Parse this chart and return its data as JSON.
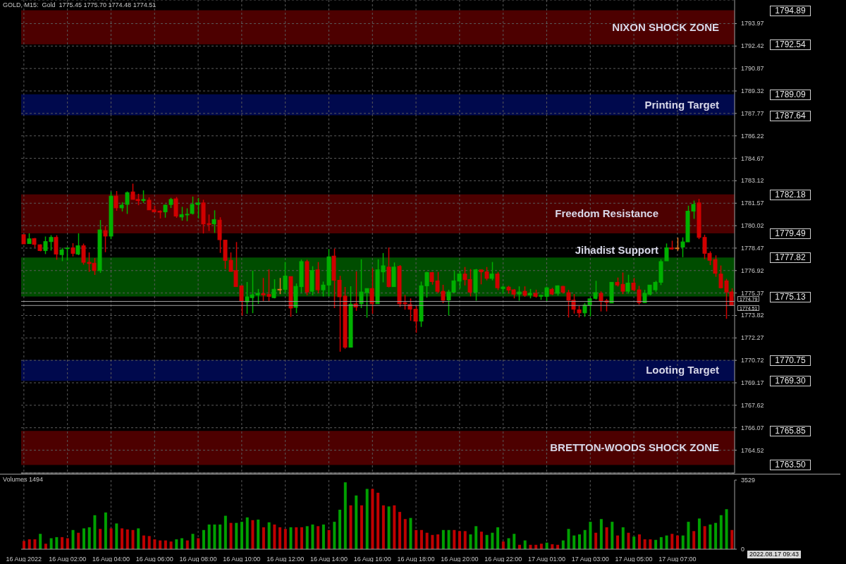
{
  "chart_data": [
    {
      "type": "candlestick",
      "title": "GOLD, M15:  Gold  1775.45 1775.70 1774.48 1774.51",
      "tick_labels": "y",
      "grid": true,
      "categories": [
        null,
        null,
        null,
        null,
        null,
        null,
        null,
        null,
        null,
        null,
        null,
        null,
        null,
        null,
        null,
        null,
        null,
        null,
        null,
        null,
        null,
        null,
        null,
        null,
        null,
        null,
        null,
        null,
        null,
        null,
        null,
        null,
        null,
        null,
        null,
        null,
        null,
        null,
        null,
        null,
        null,
        null,
        null,
        null,
        null,
        null,
        null,
        null,
        null,
        null,
        null,
        null,
        null,
        null,
        null,
        null,
        null,
        null,
        null,
        null,
        null,
        null,
        null,
        null,
        null,
        null,
        null,
        null,
        null,
        null,
        null,
        null,
        null,
        null,
        null,
        null,
        null,
        null,
        null,
        null,
        null,
        null,
        null,
        null,
        null,
        null,
        null,
        null,
        null,
        null,
        null,
        null,
        null,
        null,
        null,
        null,
        null,
        null,
        null,
        null,
        null,
        null,
        null,
        null,
        null,
        null,
        null,
        null,
        null,
        null,
        null,
        null,
        null,
        null,
        null,
        null,
        null,
        null,
        null,
        null,
        null,
        null,
        null,
        null,
        null,
        null,
        null,
        null,
        null,
        null,
        null
      ],
      "ohlc": [
        [
          1779.4,
          1779.4,
          1778.76,
          1778.76
        ],
        [
          1778.78,
          1779.49,
          1778.78,
          1779.11
        ],
        [
          1779.13,
          1779.17,
          1778.51,
          1778.73
        ],
        [
          1778.7,
          1778.73,
          1778.25,
          1778.3
        ],
        [
          1778.3,
          1779.27,
          1778.06,
          1778.92
        ],
        [
          1778.92,
          1779.36,
          1778.3,
          1779.21
        ],
        [
          1779.21,
          1779.36,
          1777.67,
          1778.06
        ],
        [
          1778.02,
          1778.49,
          1777.57,
          1778.35
        ],
        [
          1778.45,
          1778.51,
          1777.62,
          1778.48
        ],
        [
          1778.49,
          1778.81,
          1777.9,
          1778.11
        ],
        [
          1778.06,
          1779.49,
          1777.98,
          1778.63
        ],
        [
          1778.63,
          1778.78,
          1777.33,
          1777.49
        ],
        [
          1777.49,
          1778.17,
          1776.83,
          1777.4
        ],
        [
          1777.43,
          1777.79,
          1776.62,
          1776.92
        ],
        [
          1776.92,
          1780.41,
          1776.76,
          1779.73
        ],
        [
          1779.68,
          1780.0,
          1778.19,
          1779.3
        ],
        [
          1779.3,
          1782.35,
          1779.09,
          1782.06
        ],
        [
          1782.06,
          1782.41,
          1781.05,
          1781.25
        ],
        [
          1781.25,
          1781.63,
          1781.0,
          1781.44
        ],
        [
          1781.49,
          1782.38,
          1780.83,
          1782.3
        ],
        [
          1782.35,
          1782.92,
          1781.83,
          1781.83
        ],
        [
          1781.83,
          1782.22,
          1781.43,
          1781.75
        ],
        [
          1781.75,
          1782.46,
          1781.59,
          1781.83
        ],
        [
          1781.78,
          1781.97,
          1781.11,
          1781.11
        ],
        [
          1781.11,
          1781.4,
          1780.97,
          1780.97
        ],
        [
          1781.02,
          1781.08,
          1780.52,
          1780.95
        ],
        [
          1780.97,
          1781.49,
          1780.57,
          1781.44
        ],
        [
          1781.48,
          1781.94,
          1781.24,
          1781.83
        ],
        [
          1781.87,
          1782.0,
          1780.56,
          1780.68
        ],
        [
          1780.62,
          1781.32,
          1780.36,
          1780.78
        ],
        [
          1780.76,
          1781.22,
          1780.33,
          1780.81
        ],
        [
          1780.86,
          1782.03,
          1780.79,
          1781.49
        ],
        [
          1781.48,
          1781.94,
          1780.52,
          1781.59
        ],
        [
          1781.59,
          1781.81,
          1779.48,
          1780.14
        ],
        [
          1780.16,
          1780.79,
          1779.65,
          1780.1
        ],
        [
          1780.14,
          1781.08,
          1779.52,
          1780.44
        ],
        [
          1780.4,
          1780.6,
          1778.14,
          1779.05
        ],
        [
          1779.02,
          1779.02,
          1777.03,
          1777.62
        ],
        [
          1777.63,
          1778.17,
          1776.86,
          1776.86
        ],
        [
          1776.92,
          1778.89,
          1775.81,
          1775.81
        ],
        [
          1775.87,
          1775.87,
          1773.81,
          1774.81
        ],
        [
          1774.76,
          1776.13,
          1773.94,
          1775.11
        ],
        [
          1775.05,
          1776.92,
          1773.98,
          1775.25
        ],
        [
          1775.24,
          1775.65,
          1774.62,
          1775.35
        ],
        [
          1775.33,
          1776.41,
          1774.79,
          1775.24
        ],
        [
          1775.27,
          1777.0,
          1774.79,
          1775.14
        ],
        [
          1775.05,
          1776.32,
          1775.0,
          1775.63
        ],
        [
          1775.63,
          1776.41,
          1775.29,
          1775.63
        ],
        [
          1775.62,
          1777.51,
          1775.36,
          1776.54
        ],
        [
          1776.51,
          1776.51,
          1773.73,
          1774.33
        ],
        [
          1774.38,
          1776.03,
          1773.98,
          1775.83
        ],
        [
          1775.81,
          1777.68,
          1775.41,
          1777.54
        ],
        [
          1777.54,
          1777.67,
          1775.21,
          1775.44
        ],
        [
          1775.49,
          1777.22,
          1775.21,
          1776.92
        ],
        [
          1776.97,
          1777.51,
          1775.36,
          1775.59
        ],
        [
          1775.59,
          1776.16,
          1775.13,
          1775.92
        ],
        [
          1775.92,
          1778.41,
          1775.13,
          1777.87
        ],
        [
          1777.92,
          1778.44,
          1774.33,
          1776.25
        ],
        [
          1776.25,
          1776.56,
          1771.32,
          1775.11
        ],
        [
          1775.16,
          1775.79,
          1771.52,
          1771.63
        ],
        [
          1771.63,
          1775.84,
          1771.63,
          1774.59
        ],
        [
          1774.62,
          1776.86,
          1774.14,
          1774.4
        ],
        [
          1774.63,
          1777.7,
          1774.33,
          1775.44
        ],
        [
          1775.4,
          1775.68,
          1773.67,
          1775.68
        ],
        [
          1775.68,
          1777.08,
          1773.94,
          1774.63
        ],
        [
          1774.63,
          1777.7,
          1774.63,
          1776.97
        ],
        [
          1776.83,
          1778.13,
          1776.11,
          1777.25
        ],
        [
          1777.16,
          1778.51,
          1775.76,
          1775.81
        ],
        [
          1775.81,
          1777.48,
          1775.81,
          1777.16
        ],
        [
          1777.21,
          1777.3,
          1774.41,
          1774.63
        ],
        [
          1774.7,
          1775.24,
          1774.22,
          1774.63
        ],
        [
          1774.57,
          1775.0,
          1773.46,
          1774.25
        ],
        [
          1774.25,
          1774.48,
          1772.63,
          1773.43
        ],
        [
          1773.43,
          1776.16,
          1773.03,
          1775.87
        ],
        [
          1775.87,
          1776.84,
          1775.05,
          1776.78
        ],
        [
          1776.78,
          1776.83,
          1775.95,
          1776.16
        ],
        [
          1776.21,
          1776.83,
          1775.36,
          1775.48
        ],
        [
          1775.49,
          1775.94,
          1774.67,
          1774.87
        ],
        [
          1774.89,
          1775.6,
          1773.83,
          1775.44
        ],
        [
          1775.43,
          1776.92,
          1775.43,
          1776.21
        ],
        [
          1776.19,
          1776.92,
          1775.68,
          1776.68
        ],
        [
          1776.68,
          1777.17,
          1775.89,
          1776.29
        ],
        [
          1776.3,
          1777.03,
          1775.14,
          1775.43
        ],
        [
          1775.43,
          1777.03,
          1774.84,
          1776.97
        ],
        [
          1776.97,
          1776.97,
          1775.97,
          1776.83
        ],
        [
          1776.83,
          1777.17,
          1776.24,
          1776.38
        ],
        [
          1776.38,
          1777.51,
          1776.24,
          1776.68
        ],
        [
          1776.68,
          1776.83,
          1775.57,
          1775.73
        ],
        [
          1775.68,
          1775.87,
          1775.33,
          1775.78
        ],
        [
          1775.78,
          1775.87,
          1775.33,
          1775.57
        ],
        [
          1775.59,
          1775.65,
          1775.0,
          1775.29
        ],
        [
          1775.3,
          1775.83,
          1774.84,
          1775.44
        ],
        [
          1775.49,
          1775.83,
          1775.11,
          1775.21
        ],
        [
          1775.24,
          1775.65,
          1775.0,
          1775.35
        ],
        [
          1775.35,
          1775.6,
          1775.05,
          1775.14
        ],
        [
          1775.14,
          1775.24,
          1774.9,
          1775.21
        ],
        [
          1775.14,
          1775.81,
          1774.81,
          1775.73
        ],
        [
          1775.63,
          1775.73,
          1775.22,
          1775.3
        ],
        [
          1775.35,
          1775.9,
          1775.19,
          1775.87
        ],
        [
          1775.83,
          1775.87,
          1775.33,
          1775.43
        ],
        [
          1775.4,
          1775.59,
          1773.68,
          1774.87
        ],
        [
          1774.87,
          1775.3,
          1773.95,
          1774.25
        ],
        [
          1774.21,
          1774.49,
          1773.68,
          1774.0
        ],
        [
          1774.0,
          1774.68,
          1773.73,
          1774.54
        ],
        [
          1774.52,
          1775.05,
          1773.75,
          1774.97
        ],
        [
          1775.0,
          1776.21,
          1774.92,
          1775.4
        ],
        [
          1775.35,
          1775.49,
          1774.1,
          1774.81
        ],
        [
          1774.83,
          1774.97,
          1774.1,
          1774.73
        ],
        [
          1774.68,
          1776.11,
          1774.68,
          1776.11
        ],
        [
          1776.11,
          1776.44,
          1775.81,
          1775.92
        ],
        [
          1775.97,
          1776.79,
          1775.29,
          1775.49
        ],
        [
          1775.49,
          1776.63,
          1775.33,
          1776.06
        ],
        [
          1776.06,
          1776.41,
          1775.49,
          1775.59
        ],
        [
          1775.59,
          1775.87,
          1774.57,
          1774.71
        ],
        [
          1774.71,
          1775.59,
          1774.68,
          1775.35
        ],
        [
          1775.29,
          1775.92,
          1775.21,
          1775.92
        ],
        [
          1775.59,
          1776.21,
          1775.44,
          1776.11
        ],
        [
          1776.11,
          1777.7,
          1775.92,
          1777.54
        ],
        [
          1777.59,
          1778.79,
          1777.59,
          1778.49
        ],
        [
          1778.48,
          1778.98,
          1778.36,
          1778.41
        ],
        [
          1778.48,
          1779.19,
          1778.29,
          1778.48
        ],
        [
          1778.54,
          1779.21,
          1777.84,
          1778.9
        ],
        [
          1778.9,
          1781.4,
          1778.9,
          1781.02
        ],
        [
          1781.02,
          1781.75,
          1780.49,
          1781.49
        ],
        [
          1781.59,
          1781.87,
          1779.09,
          1779.21
        ],
        [
          1779.21,
          1779.4,
          1777.71,
          1778.11
        ],
        [
          1778.11,
          1778.25,
          1777.3,
          1777.63
        ],
        [
          1777.68,
          1777.97,
          1776.49,
          1776.73
        ],
        [
          1776.68,
          1777.27,
          1775.68,
          1775.73
        ],
        [
          1776.21,
          1776.35,
          1773.59,
          1775.44
        ],
        [
          1775.45,
          1775.7,
          1774.48,
          1774.51
        ]
      ],
      "colors": [
        "#d00000",
        "#00b000",
        "#d00000",
        "#d00000",
        "#00b000",
        "#00b000",
        "#d00000",
        "#00b000",
        "#00b000",
        "#d00000",
        "#00b000",
        "#d00000",
        "#d00000",
        "#d00000",
        "#00b000",
        "#d00000",
        "#00b000",
        "#d00000",
        "#00b000",
        "#00b000",
        "#d00000",
        "#d00000",
        "#00b000",
        "#d00000",
        "#d00000",
        "#d00000",
        "#00b000",
        "#00b000",
        "#d00000",
        "#00b000",
        "#00b000",
        "#00b000",
        "#00b000",
        "#d00000",
        "#d00000",
        "#00b000",
        "#d00000",
        "#d00000",
        "#d00000",
        "#d00000",
        "#d00000",
        "#00b000",
        "#00b000",
        "#00b000",
        "#d00000",
        "#d00000",
        "#00b000",
        "#e07020",
        "#00b000",
        "#d00000",
        "#00b000",
        "#00b000",
        "#d00000",
        "#00b000",
        "#d00000",
        "#00b000",
        "#00b000",
        "#d00000",
        "#d00000",
        "#d00000",
        "#00b000",
        "#d00000",
        "#00b000",
        "#00b000",
        "#d00000",
        "#00b000",
        "#00b000",
        "#d00000",
        "#00b000",
        "#d00000",
        "#d00000",
        "#d00000",
        "#d00000",
        "#00b000",
        "#00b000",
        "#d00000",
        "#d00000",
        "#d00000",
        "#00b000",
        "#00b000",
        "#00b000",
        "#d00000",
        "#d00000",
        "#00b000",
        "#d00000",
        "#d00000",
        "#00b000",
        "#d00000",
        "#00b000",
        "#d00000",
        "#d00000",
        "#00b000",
        "#d00000",
        "#00b000",
        "#d00000",
        "#00b000",
        "#00b000",
        "#d00000",
        "#00b000",
        "#d00000",
        "#d00000",
        "#d00000",
        "#d00000",
        "#00b000",
        "#00b000",
        "#00b000",
        "#d00000",
        "#d00000",
        "#00b000",
        "#d00000",
        "#d00000",
        "#00b000",
        "#d00000",
        "#d00000",
        "#00b000",
        "#00b000",
        "#00b000",
        "#00b000",
        "#00b000",
        "#d00000",
        "#e07020",
        "#00b000",
        "#00b000",
        "#00b000",
        "#d00000",
        "#d00000",
        "#d00000",
        "#d00000",
        "#d00000",
        "#d00000",
        "#d00000"
      ],
      "ylim": [
        1762.94,
        1795.6
      ],
      "yticks": [
        1764.52,
        1766.07,
        1767.62,
        1769.17,
        1770.72,
        1772.27,
        1773.82,
        1775.37,
        1776.92,
        1778.47,
        1780.02,
        1781.57,
        1783.12,
        1784.67,
        1786.22,
        1787.77,
        1789.32,
        1790.87,
        1792.42,
        1793.97
      ],
      "annotations": [
        "1794.89",
        "1792.54",
        "1789.09",
        "1787.64",
        "1782.18",
        "1779.49",
        "1777.82",
        "1775.13",
        "1770.75",
        "1769.30",
        "1765.85",
        "1763.50"
      ],
      "bands": [
        {
          "axis": "y",
          "from": 1792.54,
          "to": 1794.89,
          "label": "NIXON SHOCK ZONE",
          "color": "#5a0000"
        },
        {
          "axis": "y",
          "from": 1787.64,
          "to": 1789.09,
          "label": "Printing Target",
          "color": "#000a5a"
        },
        {
          "axis": "y",
          "from": 1779.49,
          "to": 1782.18,
          "label": "Freedom Resistance",
          "color": "#5a0000"
        },
        {
          "axis": "y",
          "from": 1775.13,
          "to": 1777.82,
          "label": "Jihadist Support",
          "color": "#005a00"
        },
        {
          "axis": "y",
          "from": 1769.3,
          "to": 1770.75,
          "label": "Looting Target",
          "color": "#000a5a"
        },
        {
          "axis": "y",
          "from": 1763.5,
          "to": 1765.85,
          "label": "BRETTON-WOODS SHOCK ZONE",
          "color": "#5a0000"
        }
      ],
      "ref_lines": [
        {
          "axis": "y",
          "value": 1774.79,
          "label": "1774.79",
          "color": "#a0a0a0"
        },
        {
          "axis": "y",
          "value": 1774.51,
          "label": "1774.51",
          "color": "#a0a0a0"
        }
      ]
    },
    {
      "type": "bar",
      "title": "Volumes 1494",
      "grid": "x",
      "annotations": [
        "2022.08.17 09:43"
      ],
      "categories": [
        "16 Aug 2022",
        null,
        null,
        null,
        null,
        null,
        null,
        null,
        "16 Aug 02:00",
        null,
        null,
        null,
        null,
        null,
        null,
        null,
        "16 Aug 04:00",
        null,
        null,
        null,
        null,
        null,
        null,
        null,
        "16 Aug 06:00",
        null,
        null,
        null,
        null,
        null,
        null,
        null,
        "16 Aug 08:00",
        null,
        null,
        null,
        null,
        null,
        null,
        null,
        "16 Aug 10:00",
        null,
        null,
        null,
        null,
        null,
        null,
        null,
        "16 Aug 12:00",
        null,
        null,
        null,
        null,
        null,
        null,
        null,
        "16 Aug 14:00",
        null,
        null,
        null,
        null,
        null,
        null,
        null,
        "16 Aug 16:00",
        null,
        null,
        null,
        null,
        null,
        null,
        null,
        "16 Aug 18:00",
        null,
        null,
        null,
        null,
        null,
        null,
        null,
        "16 Aug 20:00",
        null,
        null,
        null,
        null,
        null,
        null,
        null,
        "16 Aug 22:00",
        null,
        null,
        null,
        null,
        null,
        null,
        null,
        "17 Aug 01:00",
        null,
        null,
        null,
        null,
        null,
        null,
        null,
        "17 Aug 03:00",
        null,
        null,
        null,
        null,
        null,
        null,
        null,
        "17 Aug 05:00",
        null,
        null,
        null,
        null,
        null,
        null,
        null,
        "17 Aug 07:00",
        null,
        null,
        null,
        null,
        null,
        null,
        null,
        null,
        null,
        null
      ],
      "values": [
        420,
        504,
        504,
        784,
        280,
        560,
        616,
        616,
        560,
        980,
        840,
        1064,
        1120,
        1736,
        1036,
        1876,
        1064,
        1316,
        1064,
        1008,
        980,
        1064,
        700,
        672,
        504,
        448,
        448,
        392,
        504,
        560,
        448,
        784,
        560,
        980,
        1260,
        1260,
        1260,
        1708,
        1344,
        1344,
        1400,
        1624,
        1484,
        1512,
        1120,
        1372,
        1260,
        1120,
        1036,
        1120,
        1120,
        1120,
        1176,
        1260,
        1176,
        1260,
        980,
        1400,
        2016,
        3416,
        2240,
        2744,
        2240,
        3080,
        3080,
        2884,
        2240,
        2184,
        2240,
        1904,
        1540,
        1596,
        980,
        980,
        840,
        728,
        756,
        980,
        980,
        980,
        924,
        924,
        756,
        1176,
        896,
        728,
        840,
        1120,
        392,
        560,
        784,
        224,
        448,
        224,
        224,
        280,
        336,
        252,
        224,
        448,
        1036,
        700,
        756,
        980,
        1400,
        840,
        1540,
        1120,
        1400,
        700,
        1120,
        840,
        644,
        756,
        504,
        504,
        476,
        616,
        700,
        784,
        700,
        700,
        1400,
        924,
        1568,
        1176,
        1260,
        1344,
        1736,
        2044,
        980
      ],
      "colors": [
        "#c00000",
        "#c00000",
        "#c00000",
        "#00a000",
        "#c00000",
        "#00a000",
        "#00a000",
        "#c00000",
        "#c00000",
        "#00a000",
        "#c00000",
        "#00a000",
        "#00a000",
        "#00a000",
        "#c00000",
        "#00a000",
        "#c00000",
        "#00a000",
        "#c00000",
        "#c00000",
        "#c00000",
        "#00a000",
        "#c00000",
        "#c00000",
        "#c00000",
        "#c00000",
        "#c00000",
        "#c00000",
        "#00a000",
        "#00a000",
        "#c00000",
        "#00a000",
        "#c00000",
        "#00a000",
        "#00a000",
        "#00a000",
        "#00a000",
        "#00a000",
        "#c00000",
        "#00a000",
        "#00a000",
        "#00a000",
        "#c00000",
        "#00a000",
        "#c00000",
        "#00a000",
        "#c00000",
        "#c00000",
        "#c00000",
        "#00a000",
        "#c00000",
        "#c00000",
        "#00a000",
        "#00a000",
        "#c00000",
        "#00a000",
        "#c00000",
        "#00a000",
        "#00a000",
        "#00a000",
        "#c00000",
        "#00a000",
        "#c00000",
        "#00a000",
        "#c00000",
        "#c00000",
        "#c00000",
        "#00a000",
        "#c00000",
        "#c00000",
        "#c00000",
        "#00a000",
        "#c00000",
        "#c00000",
        "#c00000",
        "#c00000",
        "#c00000",
        "#00a000",
        "#00a000",
        "#c00000",
        "#c00000",
        "#c00000",
        "#00a000",
        "#00a000",
        "#c00000",
        "#00a000",
        "#00a000",
        "#00a000",
        "#c00000",
        "#00a000",
        "#00a000",
        "#c00000",
        "#00a000",
        "#c00000",
        "#c00000",
        "#c00000",
        "#00a000",
        "#c00000",
        "#c00000",
        "#00a000",
        "#00a000",
        "#00a000",
        "#00a000",
        "#00a000",
        "#00a000",
        "#c00000",
        "#00a000",
        "#c00000",
        "#00a000",
        "#c00000",
        "#00a000",
        "#c00000",
        "#00a000",
        "#c00000",
        "#c00000",
        "#c00000",
        "#00a000",
        "#00a000",
        "#00a000",
        "#c00000",
        "#c00000",
        "#00a000",
        "#00a000",
        "#c00000",
        "#00a000",
        "#c00000",
        "#00a000",
        "#00a000",
        "#00a000",
        "#00a000",
        "#c00000"
      ],
      "ylim": [
        0,
        3529
      ],
      "yticks": [
        0,
        3529
      ]
    }
  ]
}
